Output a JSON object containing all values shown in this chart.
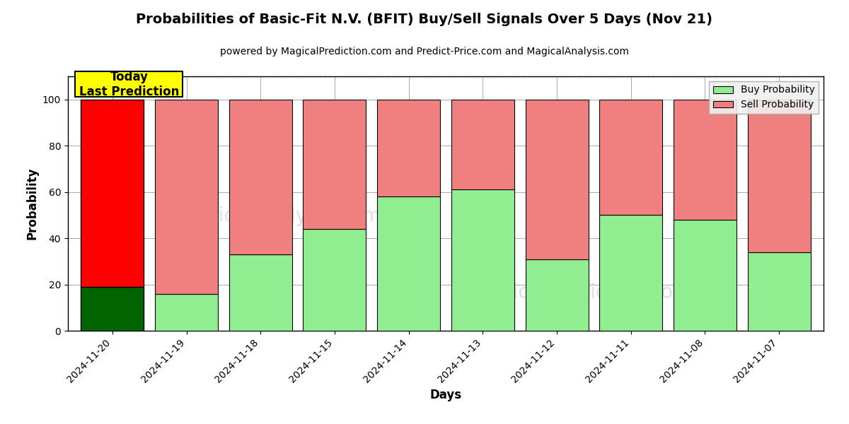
{
  "title": "Probabilities of Basic-Fit N.V. (BFIT) Buy/Sell Signals Over 5 Days (Nov 21)",
  "subtitle": "powered by MagicalPrediction.com and Predict-Price.com and MagicalAnalysis.com",
  "xlabel": "Days",
  "ylabel": "Probability",
  "categories": [
    "2024-11-20",
    "2024-11-19",
    "2024-11-18",
    "2024-11-15",
    "2024-11-14",
    "2024-11-13",
    "2024-11-12",
    "2024-11-11",
    "2024-11-08",
    "2024-11-07"
  ],
  "buy_values": [
    19,
    16,
    33,
    44,
    58,
    61,
    31,
    50,
    48,
    34
  ],
  "sell_values": [
    81,
    84,
    67,
    56,
    42,
    39,
    69,
    50,
    52,
    66
  ],
  "today_buy_color": "#006400",
  "today_sell_color": "#ff0000",
  "buy_color": "#90EE90",
  "sell_color": "#F08080",
  "today_label_bg": "#ffff00",
  "today_label_text": "Today\nLast Prediction",
  "legend_buy": "Buy Probability",
  "legend_sell": "Sell Probability",
  "ylim": [
    0,
    110
  ],
  "yticks": [
    0,
    20,
    40,
    60,
    80,
    100
  ],
  "dashed_line_y": 110,
  "background_color": "#ffffff",
  "grid_color": "#aaaaaa",
  "bar_width": 0.85
}
